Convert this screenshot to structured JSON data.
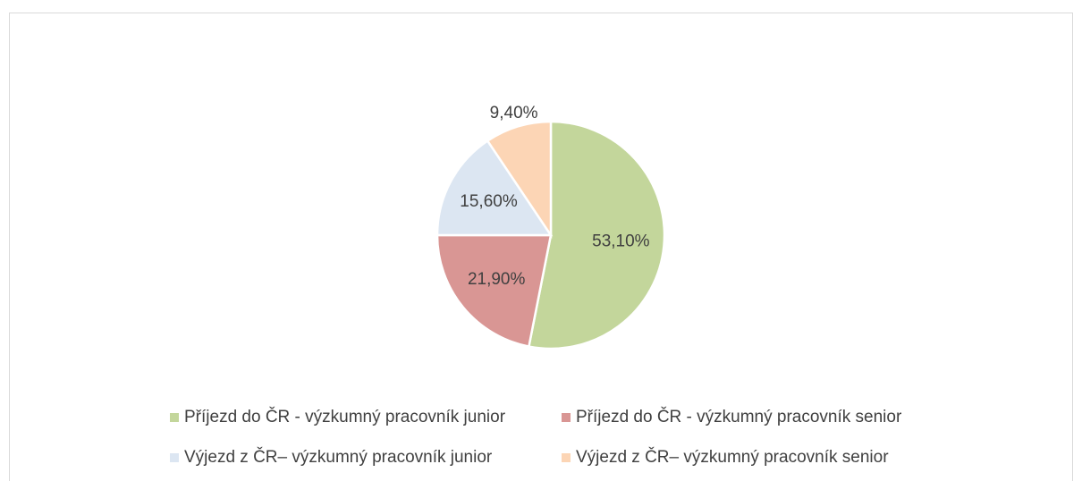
{
  "chart_data": {
    "type": "pie",
    "categories": [
      "Příjezd do ČR - výzkumný pracovník junior",
      "Příjezd do ČR - výzkumný pracovník senior",
      "Výjezd z ČR– výzkumný pracovník junior",
      "Výjezd z ČR– výzkumný pracovník senior"
    ],
    "values": [
      53.1,
      21.9,
      15.6,
      9.4
    ],
    "value_labels": [
      "53,10%",
      "21,90%",
      "15,60%",
      "9,40%"
    ],
    "colors": [
      "#c3d69b",
      "#d99694",
      "#dce6f2",
      "#fcd5b5"
    ],
    "legend": "bottom"
  }
}
